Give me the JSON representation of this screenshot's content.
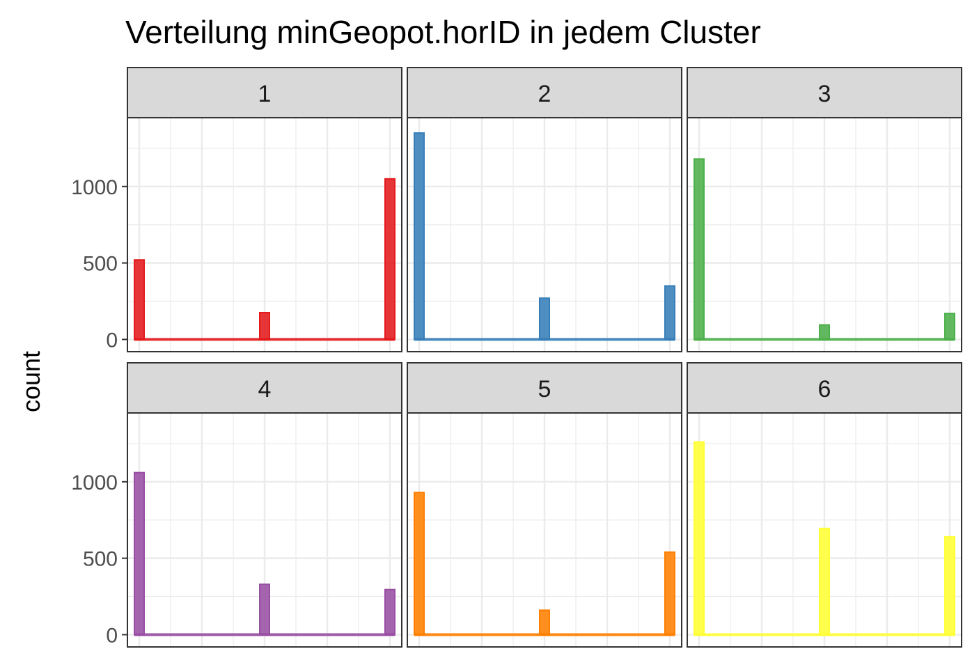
{
  "chart_data": {
    "type": "bar",
    "title": "Verteilung minGeopot.horID in jedem Cluster",
    "xlabel": "",
    "ylabel": "count",
    "ylim": [
      -80,
      1450
    ],
    "yticks": [
      0,
      500,
      1000
    ],
    "grid": true,
    "legend": "none",
    "panels": [
      {
        "label": "1",
        "color": "#E41A1C",
        "values": [
          520,
          175,
          1050
        ]
      },
      {
        "label": "2",
        "color": "#377EB8",
        "values": [
          1350,
          270,
          350
        ]
      },
      {
        "label": "3",
        "color": "#4DAF4A",
        "values": [
          1180,
          95,
          170
        ]
      },
      {
        "label": "4",
        "color": "#984EA3",
        "values": [
          1060,
          330,
          295
        ]
      },
      {
        "label": "5",
        "color": "#FF7F00",
        "values": [
          930,
          160,
          540
        ]
      },
      {
        "label": "6",
        "color": "#FFFF33",
        "values": [
          1260,
          695,
          640
        ]
      }
    ]
  }
}
